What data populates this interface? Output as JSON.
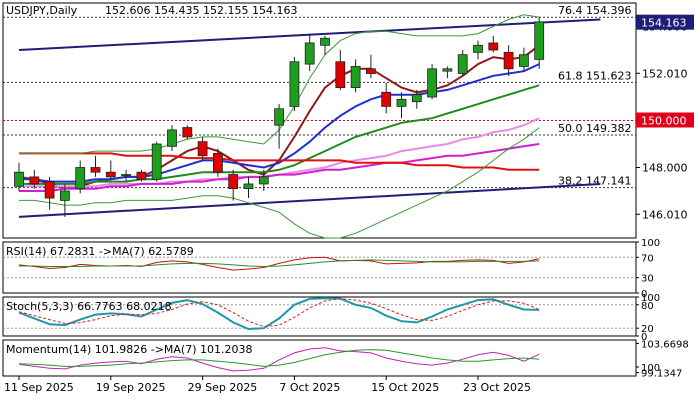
{
  "chart_data": {
    "type": "candlestick",
    "symbol": "USDJPY",
    "timeframe": "Daily",
    "header": {
      "title": "USDJPY,Daily",
      "ohlc": "152.606 154.435 152.155 154.163"
    },
    "current_price": {
      "value": 154.163,
      "label": "154.163",
      "color": "#1e1e7a"
    },
    "marked_level": {
      "value": 150.0,
      "label": "150.000",
      "color": "#e0001a"
    },
    "price_axis": {
      "ylim": [
        145.0,
        155.0
      ],
      "ticks": [
        {
          "value": 146.01,
          "label": "146.010"
        },
        {
          "value": 148.0,
          "label": "148.000"
        },
        {
          "value": 150.01,
          "label": "150.010"
        },
        {
          "value": 152.01,
          "label": "152.010"
        },
        {
          "value": 154.0,
          "label": "154.000"
        }
      ]
    },
    "x_axis": {
      "labels": [
        {
          "index": 0,
          "label": "11 Sep 2025"
        },
        {
          "index": 6,
          "label": "19 Sep 2025"
        },
        {
          "index": 12,
          "label": "29 Sep 2025"
        },
        {
          "index": 18,
          "label": "7 Oct 2025"
        },
        {
          "index": 24,
          "label": "15 Oct 2025"
        },
        {
          "index": 30,
          "label": "23 Oct 2025"
        }
      ]
    },
    "candles": [
      {
        "o": 147.2,
        "h": 148.2,
        "l": 147.0,
        "c": 147.8
      },
      {
        "o": 147.6,
        "h": 147.9,
        "l": 147.1,
        "c": 147.3
      },
      {
        "o": 147.4,
        "h": 147.6,
        "l": 146.2,
        "c": 146.7
      },
      {
        "o": 146.6,
        "h": 147.3,
        "l": 145.9,
        "c": 147.0
      },
      {
        "o": 147.1,
        "h": 148.3,
        "l": 146.9,
        "c": 148.0
      },
      {
        "o": 148.0,
        "h": 148.5,
        "l": 147.6,
        "c": 147.8
      },
      {
        "o": 147.8,
        "h": 148.3,
        "l": 147.5,
        "c": 147.6
      },
      {
        "o": 147.7,
        "h": 147.9,
        "l": 147.4,
        "c": 147.7
      },
      {
        "o": 147.8,
        "h": 147.9,
        "l": 147.4,
        "c": 147.5
      },
      {
        "o": 147.5,
        "h": 149.1,
        "l": 147.4,
        "c": 149.0
      },
      {
        "o": 148.9,
        "h": 149.8,
        "l": 148.7,
        "c": 149.6
      },
      {
        "o": 149.7,
        "h": 149.8,
        "l": 149.2,
        "c": 149.3
      },
      {
        "o": 149.1,
        "h": 149.3,
        "l": 148.3,
        "c": 148.5
      },
      {
        "o": 148.6,
        "h": 148.8,
        "l": 147.6,
        "c": 147.8
      },
      {
        "o": 147.7,
        "h": 147.9,
        "l": 146.6,
        "c": 147.1
      },
      {
        "o": 147.1,
        "h": 147.6,
        "l": 146.7,
        "c": 147.3
      },
      {
        "o": 147.3,
        "h": 147.9,
        "l": 147.0,
        "c": 147.6
      },
      {
        "o": 149.8,
        "h": 150.7,
        "l": 148.8,
        "c": 150.5
      },
      {
        "o": 150.6,
        "h": 152.7,
        "l": 150.4,
        "c": 152.5
      },
      {
        "o": 152.4,
        "h": 153.7,
        "l": 152.1,
        "c": 153.3
      },
      {
        "o": 153.2,
        "h": 153.6,
        "l": 152.8,
        "c": 153.5
      },
      {
        "o": 152.5,
        "h": 153.0,
        "l": 151.3,
        "c": 151.4
      },
      {
        "o": 151.4,
        "h": 152.6,
        "l": 151.2,
        "c": 152.3
      },
      {
        "o": 152.2,
        "h": 152.8,
        "l": 151.8,
        "c": 152.0
      },
      {
        "o": 151.2,
        "h": 151.6,
        "l": 150.3,
        "c": 150.6
      },
      {
        "o": 150.6,
        "h": 151.2,
        "l": 150.1,
        "c": 150.9
      },
      {
        "o": 150.8,
        "h": 151.3,
        "l": 150.5,
        "c": 151.1
      },
      {
        "o": 151.0,
        "h": 152.4,
        "l": 150.9,
        "c": 152.2
      },
      {
        "o": 152.1,
        "h": 152.3,
        "l": 151.8,
        "c": 152.2
      },
      {
        "o": 152.0,
        "h": 153.0,
        "l": 151.9,
        "c": 152.8
      },
      {
        "o": 152.9,
        "h": 153.4,
        "l": 152.6,
        "c": 153.2
      },
      {
        "o": 153.3,
        "h": 153.6,
        "l": 152.9,
        "c": 153.0
      },
      {
        "o": 152.9,
        "h": 153.2,
        "l": 151.9,
        "c": 152.2
      },
      {
        "o": 152.3,
        "h": 153.1,
        "l": 152.1,
        "c": 152.8
      },
      {
        "o": 152.6,
        "h": 154.4,
        "l": 152.2,
        "c": 154.2
      }
    ],
    "overlays": [
      {
        "role": "fast-ma",
        "color": "#8b1a1a",
        "values": [
          147.6,
          147.5,
          147.3,
          147.1,
          147.2,
          147.4,
          147.5,
          147.6,
          147.6,
          147.9,
          148.3,
          148.7,
          148.9,
          148.7,
          148.3,
          147.9,
          147.7,
          148.3,
          149.3,
          150.4,
          151.4,
          151.9,
          152.2,
          152.2,
          151.8,
          151.4,
          151.2,
          151.3,
          151.5,
          151.9,
          152.4,
          152.7,
          152.6,
          152.7,
          153.2
        ]
      },
      {
        "role": "mid-ma",
        "color": "#1f2fd0",
        "values": [
          147.5,
          147.5,
          147.4,
          147.4,
          147.4,
          147.5,
          147.5,
          147.6,
          147.6,
          147.7,
          147.9,
          148.1,
          148.3,
          148.3,
          148.2,
          148.1,
          148.0,
          148.2,
          148.6,
          149.1,
          149.7,
          150.2,
          150.6,
          150.9,
          151.1,
          151.1,
          151.1,
          151.2,
          151.3,
          151.5,
          151.7,
          151.9,
          152.0,
          152.1,
          152.4
        ]
      },
      {
        "role": "slow-ma",
        "color": "#1f8a1f",
        "values": [
          147.3,
          147.3,
          147.3,
          147.3,
          147.3,
          147.4,
          147.4,
          147.4,
          147.5,
          147.5,
          147.6,
          147.7,
          147.8,
          147.8,
          147.8,
          147.8,
          147.8,
          147.9,
          148.1,
          148.4,
          148.7,
          149.0,
          149.3,
          149.5,
          149.7,
          149.9,
          150.0,
          150.1,
          150.3,
          150.5,
          150.7,
          150.9,
          151.1,
          151.3,
          151.5
        ]
      },
      {
        "role": "violet-ma",
        "color": "#e88ae8",
        "values": [
          147.2,
          147.2,
          147.2,
          147.2,
          147.2,
          147.2,
          147.3,
          147.3,
          147.3,
          147.3,
          147.4,
          147.4,
          147.5,
          147.5,
          147.6,
          147.6,
          147.6,
          147.7,
          147.8,
          147.9,
          148.0,
          148.2,
          148.3,
          148.4,
          148.5,
          148.7,
          148.8,
          148.9,
          149.0,
          149.2,
          149.3,
          149.5,
          149.6,
          149.8,
          150.1
        ]
      },
      {
        "role": "magenta-ma",
        "color": "#d020d0",
        "values": [
          147.0,
          147.0,
          147.0,
          147.1,
          147.1,
          147.1,
          147.2,
          147.2,
          147.3,
          147.3,
          147.3,
          147.4,
          147.4,
          147.5,
          147.5,
          147.6,
          147.6,
          147.7,
          147.7,
          147.8,
          147.9,
          147.9,
          148.0,
          148.1,
          148.2,
          148.2,
          148.3,
          148.4,
          148.5,
          148.5,
          148.6,
          148.7,
          148.8,
          148.9,
          149.0
        ]
      },
      {
        "role": "red-ma",
        "color": "#e01010",
        "values": [
          148.6,
          148.6,
          148.6,
          148.6,
          148.6,
          148.6,
          148.6,
          148.5,
          148.5,
          148.5,
          148.5,
          148.4,
          148.4,
          148.4,
          148.3,
          148.3,
          148.3,
          148.3,
          148.3,
          148.3,
          148.3,
          148.3,
          148.2,
          148.2,
          148.2,
          148.2,
          148.1,
          148.1,
          148.1,
          148.0,
          148.0,
          148.0,
          147.9,
          147.9,
          147.9
        ]
      },
      {
        "role": "bollinger-upper",
        "color": "#3a9a3a",
        "values": [
          148.6,
          148.6,
          148.6,
          148.6,
          148.6,
          148.7,
          148.7,
          148.7,
          148.7,
          148.8,
          149.0,
          149.2,
          149.3,
          149.3,
          149.2,
          149.1,
          149.0,
          149.6,
          150.6,
          151.8,
          152.8,
          153.4,
          153.7,
          153.8,
          153.8,
          153.7,
          153.6,
          153.6,
          153.6,
          153.6,
          153.7,
          154.0,
          154.3,
          154.5,
          154.4
        ]
      },
      {
        "role": "bollinger-lower",
        "color": "#3a9a3a",
        "values": [
          146.6,
          146.6,
          146.5,
          146.4,
          146.4,
          146.5,
          146.5,
          146.6,
          146.6,
          146.6,
          146.6,
          146.7,
          146.8,
          146.8,
          146.7,
          146.5,
          146.3,
          146.1,
          145.6,
          145.2,
          145.0,
          145.0,
          145.2,
          145.5,
          145.8,
          146.1,
          146.4,
          146.7,
          147.0,
          147.4,
          147.8,
          148.3,
          148.8,
          149.2,
          149.7
        ]
      }
    ],
    "channel": [
      {
        "role": "upper-channel",
        "color": "#1e1e7a",
        "from": [
          0,
          153.0
        ],
        "to": [
          38,
          154.3
        ]
      },
      {
        "role": "lower-channel",
        "color": "#1e1e7a",
        "from": [
          0,
          145.9
        ],
        "to": [
          38,
          147.3
        ]
      }
    ],
    "fibonacci": [
      {
        "value": 154.396,
        "label": "76.4 154.396"
      },
      {
        "value": 151.623,
        "label": "61.8 151.623"
      },
      {
        "value": 149.382,
        "label": "50.0 149.382"
      },
      {
        "value": 147.141,
        "label": "38.2 147.141"
      }
    ],
    "panels": [
      {
        "id": "rsi",
        "title": "RSI(14) 67.2831 ->MA(7) 62.5789",
        "ylim": [
          0,
          100
        ],
        "ticks": [
          {
            "value": 100,
            "label": "100"
          },
          {
            "value": 70,
            "label": "70"
          },
          {
            "value": 30,
            "label": "30"
          },
          {
            "value": 0,
            "label": "0"
          }
        ],
        "levels": [
          70,
          30
        ],
        "series": [
          {
            "role": "rsi",
            "color": "#c81010",
            "values": [
              55,
              52,
              48,
              50,
              56,
              54,
              53,
              54,
              52,
              60,
              63,
              61,
              56,
              50,
              45,
              47,
              50,
              58,
              65,
              69,
              70,
              63,
              64,
              63,
              57,
              58,
              59,
              62,
              62,
              64,
              65,
              64,
              58,
              61,
              67
            ]
          },
          {
            "role": "rsi-ma",
            "color": "#2a8a2a",
            "values": [
              53,
              53,
              52,
              52,
              52,
              53,
              53,
              53,
              53,
              55,
              57,
              58,
              58,
              57,
              55,
              53,
              52,
              53,
              55,
              58,
              61,
              63,
              64,
              65,
              64,
              63,
              62,
              61,
              61,
              61,
              62,
              62,
              62,
              62,
              63
            ]
          }
        ]
      },
      {
        "id": "stoch",
        "title": "Stoch(5,3,3) 66.7763 68.0218",
        "ylim": [
          0,
          100
        ],
        "ticks": [
          {
            "value": 100,
            "label": "100"
          },
          {
            "value": 80,
            "label": "80"
          },
          {
            "value": 20,
            "label": "20"
          },
          {
            "value": 0,
            "label": "0"
          }
        ],
        "levels": [
          80,
          20
        ],
        "series": [
          {
            "role": "stoch-main",
            "color": "#1a9aa8",
            "values": [
              60,
              45,
              30,
              28,
              42,
              55,
              58,
              56,
              50,
              68,
              85,
              92,
              82,
              60,
              35,
              18,
              20,
              45,
              80,
              95,
              97,
              96,
              80,
              72,
              52,
              38,
              35,
              50,
              68,
              80,
              92,
              94,
              80,
              68,
              67
            ]
          },
          {
            "role": "stoch-signal",
            "color": "#e02020",
            "values": [
              62,
              52,
              42,
              32,
              34,
              42,
              52,
              56,
              55,
              58,
              68,
              82,
              88,
              80,
              60,
              38,
              24,
              28,
              48,
              72,
              90,
              96,
              92,
              84,
              70,
              54,
              42,
              40,
              50,
              66,
              80,
              90,
              90,
              84,
              68
            ]
          }
        ]
      },
      {
        "id": "momentum",
        "title": "Momentum(14) 101.9826 ->MA(7) 101.2038",
        "ylim": [
          98.6,
          104.2
        ],
        "ticks": [
          {
            "value": 103.6698,
            "label": "103.6698"
          },
          {
            "value": 100,
            "label": "100"
          },
          {
            "value": 99.1347,
            "label": "99.1347"
          }
        ],
        "levels": [],
        "series": [
          {
            "role": "momentum",
            "color": "#c020c0",
            "values": [
              100.4,
              100.1,
              99.8,
              99.7,
              100.3,
              100.6,
              100.8,
              100.9,
              100.5,
              101.2,
              101.6,
              101.4,
              100.6,
              99.9,
              99.4,
              99.5,
              99.8,
              101.1,
              102.2,
              102.8,
              103.0,
              102.5,
              102.4,
              102.2,
              101.4,
              100.9,
              100.5,
              100.3,
              100.6,
              101.2,
              101.9,
              102.3,
              101.8,
              100.9,
              101.98
            ]
          },
          {
            "role": "momentum-ma",
            "color": "#2a9a2a",
            "values": [
              100.5,
              100.4,
              100.3,
              100.1,
              100.1,
              100.2,
              100.3,
              100.5,
              100.6,
              100.8,
              101.0,
              101.1,
              101.1,
              100.9,
              100.7,
              100.4,
              100.1,
              100.3,
              100.7,
              101.3,
              101.9,
              102.3,
              102.6,
              102.7,
              102.6,
              102.2,
              101.8,
              101.4,
              101.1,
              100.9,
              100.9,
              101.1,
              101.3,
              101.4,
              101.2
            ]
          }
        ]
      }
    ]
  }
}
